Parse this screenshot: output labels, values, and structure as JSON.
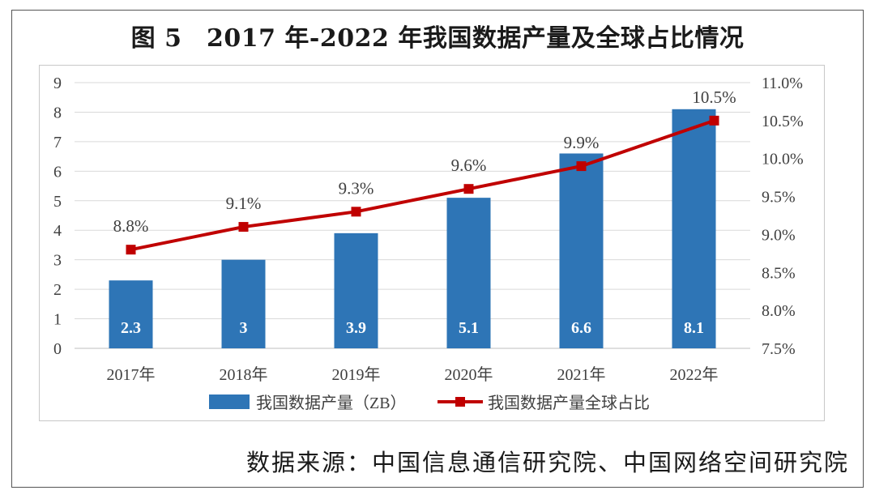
{
  "figure": {
    "title": "图 5　2017 年-2022 年我国数据产量及全球占比情况",
    "source": "数据来源：中国信息通信研究院、中国网络空间研究院"
  },
  "colors": {
    "bar": "#2e75b6",
    "line": "#c00000",
    "grid": "#d9d9d9",
    "text": "#404040"
  },
  "chart_data": {
    "type": "bar",
    "categories": [
      "2017年",
      "2018年",
      "2019年",
      "2020年",
      "2021年",
      "2022年"
    ],
    "y_left": {
      "ticks": [
        "0",
        "1",
        "2",
        "3",
        "4",
        "5",
        "6",
        "7",
        "8",
        "9"
      ],
      "ylim": [
        0,
        9
      ]
    },
    "y_right": {
      "ticks": [
        "7.5%",
        "8.0%",
        "8.5%",
        "9.0%",
        "9.5%",
        "10.0%",
        "10.5%",
        "11.0%"
      ],
      "ylim": [
        7.5,
        11.0
      ]
    },
    "grid": true,
    "legend_position": "bottom",
    "series": [
      {
        "name": "我国数据产量（ZB）",
        "type": "bar",
        "axis": "left",
        "values": [
          2.3,
          3,
          3.9,
          5.1,
          6.6,
          8.1
        ],
        "labels": [
          "2.3",
          "3",
          "3.9",
          "5.1",
          "6.6",
          "8.1"
        ]
      },
      {
        "name": "我国数据产量全球占比",
        "type": "line",
        "axis": "right",
        "values": [
          8.8,
          9.1,
          9.3,
          9.6,
          9.9,
          10.5
        ],
        "labels": [
          "8.8%",
          "9.1%",
          "9.3%",
          "9.6%",
          "9.9%",
          "10.5%"
        ]
      }
    ]
  }
}
